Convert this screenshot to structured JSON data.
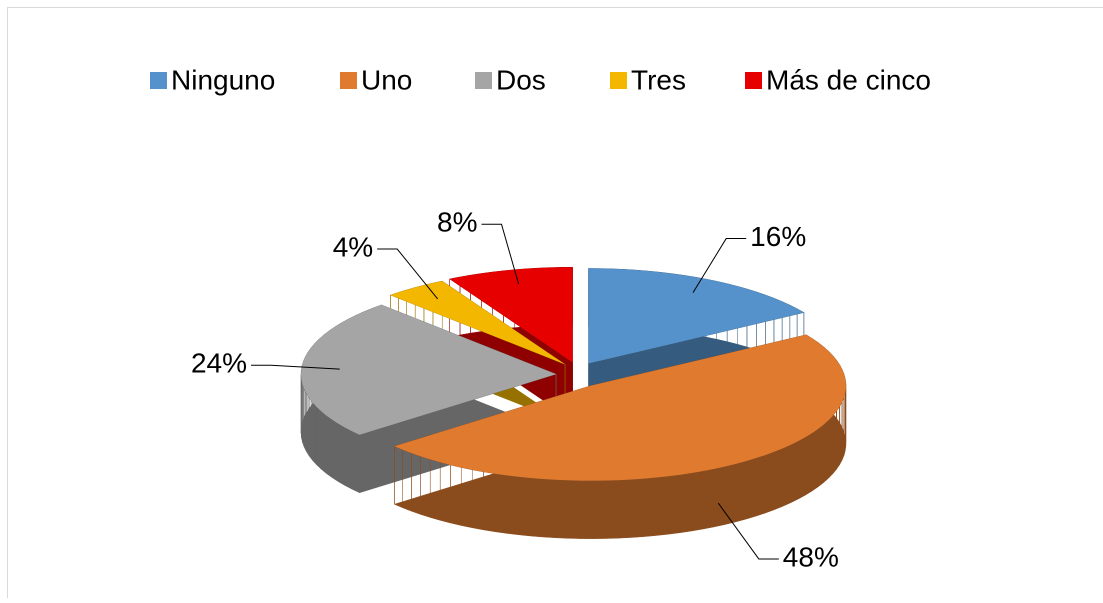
{
  "chart_data": {
    "type": "pie",
    "categories": [
      "Ninguno",
      "Uno",
      "Dos",
      "Tres",
      "Más de cinco"
    ],
    "values": [
      16,
      48,
      24,
      4,
      8
    ],
    "value_labels": [
      "16%",
      "48%",
      "24%",
      "4%",
      "8%"
    ],
    "colors": [
      "#5592cb",
      "#e07a2f",
      "#a5a5a5",
      "#f4b700",
      "#e60000"
    ],
    "legend": "top"
  }
}
